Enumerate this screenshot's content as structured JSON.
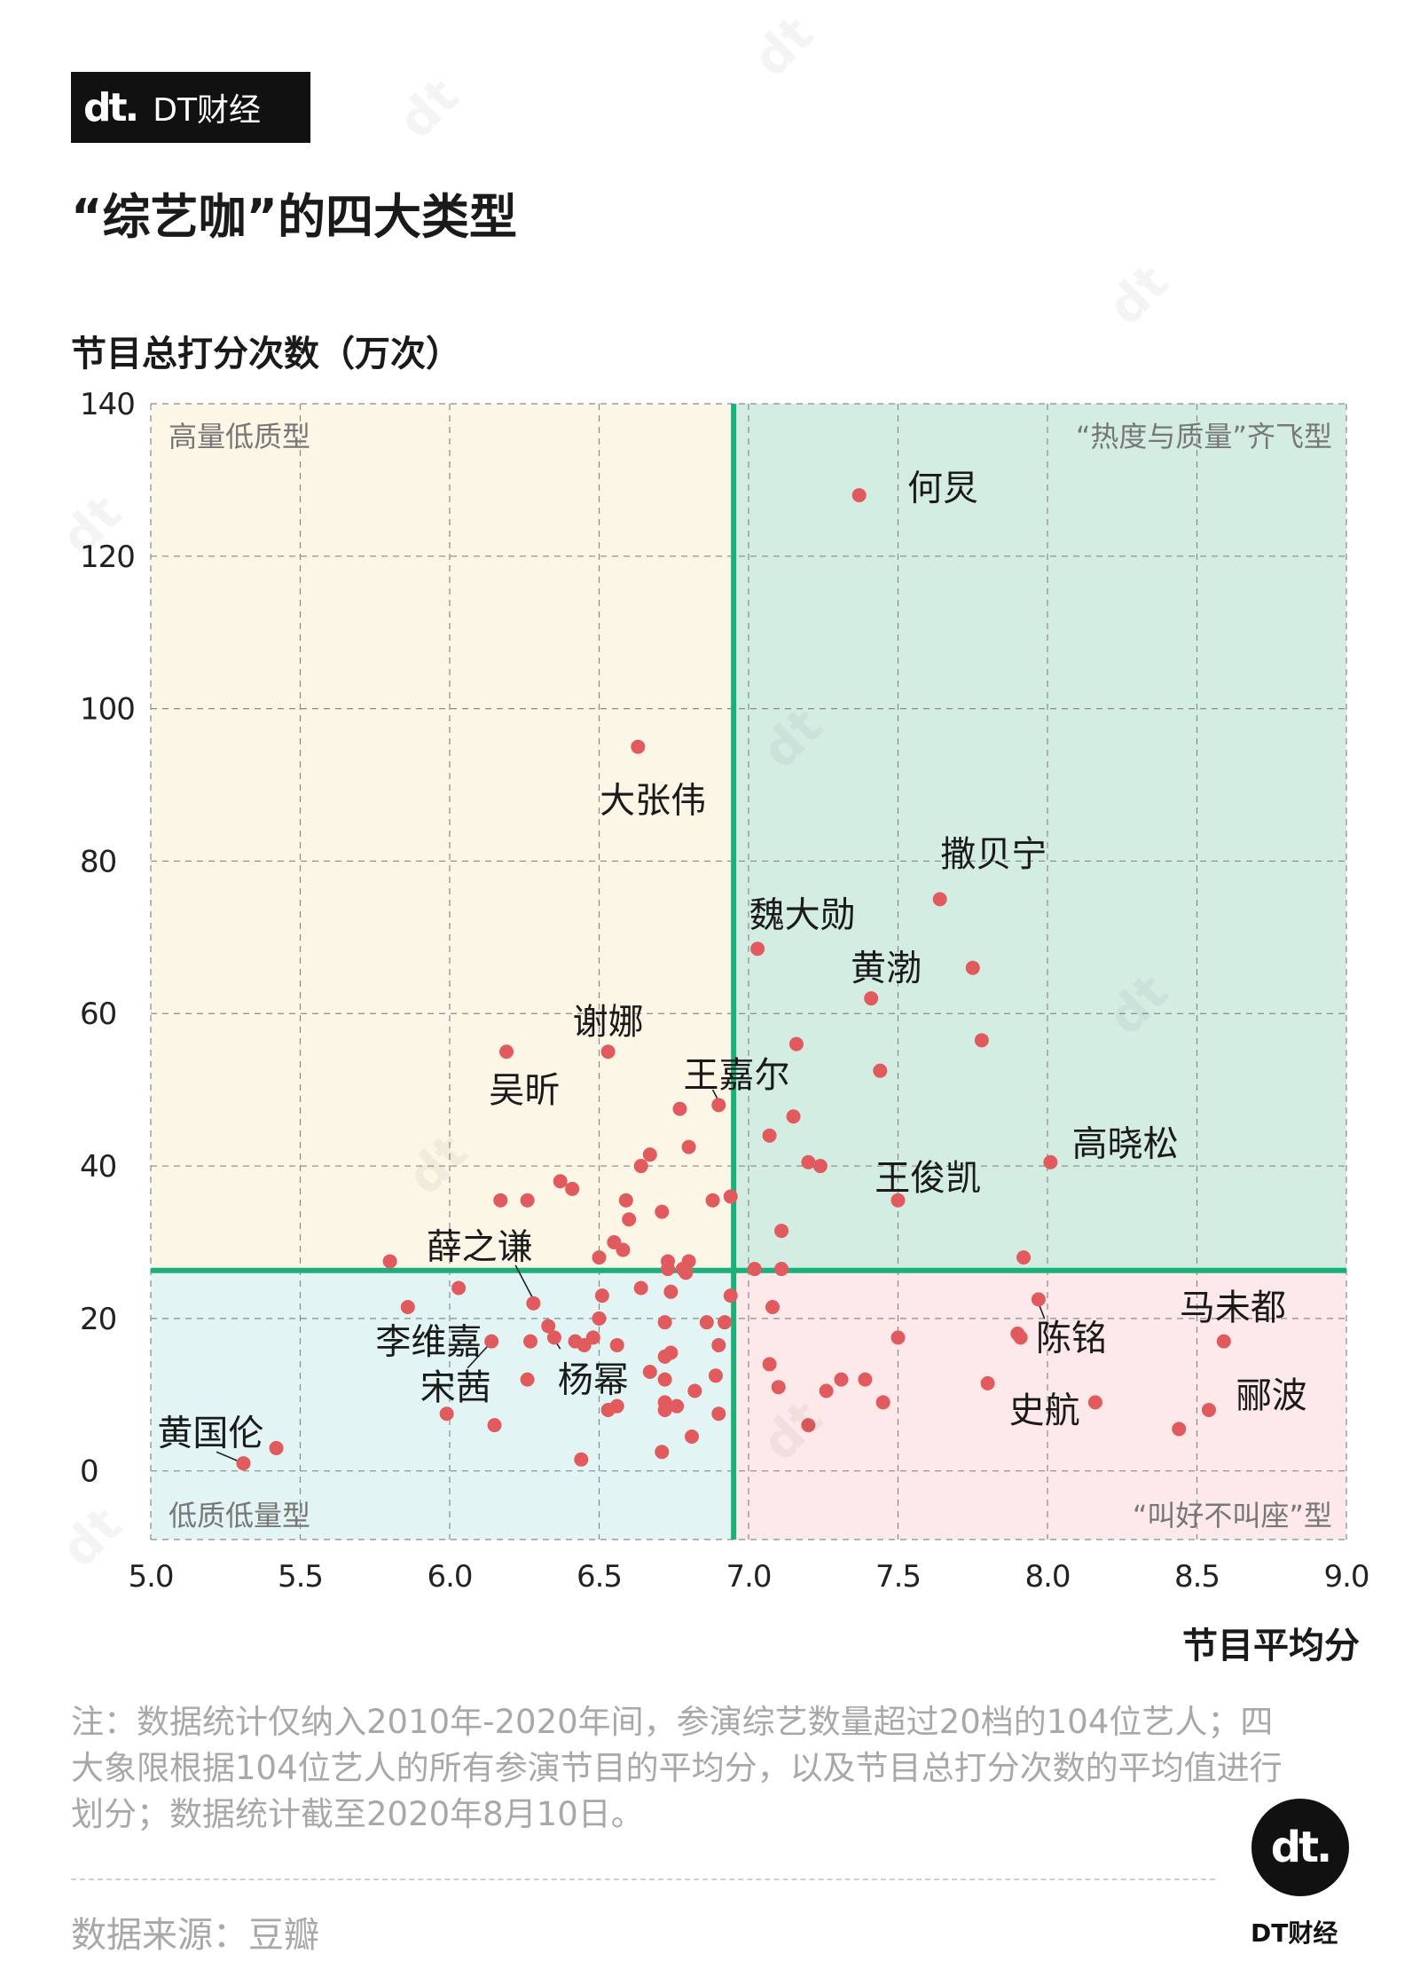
{
  "brand": {
    "logo": "dt.",
    "name": "DT财经"
  },
  "chart_data": {
    "type": "scatter",
    "title": "“综艺咖”的四大类型",
    "ylabel": "节目总打分次数（万次）",
    "xlabel": "节目平均分",
    "xlim": [
      5.0,
      9.0
    ],
    "ylim": [
      -9,
      140
    ],
    "xticks": [
      "5.0",
      "5.5",
      "6.0",
      "6.5",
      "7.0",
      "7.5",
      "8.0",
      "8.5",
      "9.0"
    ],
    "yticks": [
      "0",
      "20",
      "40",
      "60",
      "80",
      "100",
      "120",
      "140"
    ],
    "grid": true,
    "mean_x": 6.95,
    "mean_y": 26.3,
    "quadrant_labels": {
      "top_left": "高量低质型",
      "top_right": "“热度与质量”齐飞型",
      "bottom_left": "低质低量型",
      "bottom_right": "“叫好不叫座”型"
    },
    "colors": {
      "point": "#e05a5e",
      "divider": "#1bb07a",
      "top_left": "#fbf6e6",
      "top_right": "#d4ede3",
      "bottom_left": "#e2f4f3",
      "bottom_right": "#fde9ea"
    },
    "points": [
      {
        "x": 7.37,
        "y": 128
      },
      {
        "x": 6.63,
        "y": 95
      },
      {
        "x": 7.64,
        "y": 75
      },
      {
        "x": 7.03,
        "y": 68.5
      },
      {
        "x": 7.75,
        "y": 66
      },
      {
        "x": 7.41,
        "y": 62
      },
      {
        "x": 7.78,
        "y": 56.5
      },
      {
        "x": 6.53,
        "y": 55
      },
      {
        "x": 6.19,
        "y": 55
      },
      {
        "x": 7.16,
        "y": 56
      },
      {
        "x": 7.44,
        "y": 52.5
      },
      {
        "x": 6.9,
        "y": 48
      },
      {
        "x": 6.77,
        "y": 47.5
      },
      {
        "x": 7.15,
        "y": 46.5
      },
      {
        "x": 7.07,
        "y": 44
      },
      {
        "x": 6.8,
        "y": 42.5
      },
      {
        "x": 6.67,
        "y": 41.5
      },
      {
        "x": 7.2,
        "y": 40.5
      },
      {
        "x": 7.24,
        "y": 40
      },
      {
        "x": 8.01,
        "y": 40.5
      },
      {
        "x": 6.64,
        "y": 40
      },
      {
        "x": 6.37,
        "y": 38
      },
      {
        "x": 6.41,
        "y": 37
      },
      {
        "x": 6.94,
        "y": 36
      },
      {
        "x": 6.17,
        "y": 35.5
      },
      {
        "x": 6.26,
        "y": 35.5
      },
      {
        "x": 6.59,
        "y": 35.5
      },
      {
        "x": 6.88,
        "y": 35.5
      },
      {
        "x": 7.5,
        "y": 35.5
      },
      {
        "x": 6.71,
        "y": 34
      },
      {
        "x": 6.6,
        "y": 33
      },
      {
        "x": 7.11,
        "y": 31.5
      },
      {
        "x": 6.55,
        "y": 30
      },
      {
        "x": 6.58,
        "y": 29
      },
      {
        "x": 5.8,
        "y": 27.5
      },
      {
        "x": 6.5,
        "y": 28
      },
      {
        "x": 6.73,
        "y": 27.5
      },
      {
        "x": 6.8,
        "y": 27.5
      },
      {
        "x": 6.73,
        "y": 26.5
      },
      {
        "x": 6.78,
        "y": 26.5
      },
      {
        "x": 6.79,
        "y": 26
      },
      {
        "x": 7.02,
        "y": 26.5
      },
      {
        "x": 7.11,
        "y": 26.5
      },
      {
        "x": 7.92,
        "y": 28
      },
      {
        "x": 6.03,
        "y": 24
      },
      {
        "x": 6.64,
        "y": 24
      },
      {
        "x": 6.74,
        "y": 23.5
      },
      {
        "x": 6.94,
        "y": 23
      },
      {
        "x": 6.51,
        "y": 23
      },
      {
        "x": 6.28,
        "y": 22
      },
      {
        "x": 5.86,
        "y": 21.5
      },
      {
        "x": 7.08,
        "y": 21.5
      },
      {
        "x": 7.97,
        "y": 22.5
      },
      {
        "x": 6.5,
        "y": 20
      },
      {
        "x": 6.72,
        "y": 19.5
      },
      {
        "x": 6.86,
        "y": 19.5
      },
      {
        "x": 6.92,
        "y": 19.5
      },
      {
        "x": 6.33,
        "y": 19
      },
      {
        "x": 6.48,
        "y": 17.5
      },
      {
        "x": 6.35,
        "y": 17.5
      },
      {
        "x": 6.42,
        "y": 17
      },
      {
        "x": 6.45,
        "y": 16.5
      },
      {
        "x": 6.56,
        "y": 16.5
      },
      {
        "x": 6.14,
        "y": 17
      },
      {
        "x": 6.27,
        "y": 17
      },
      {
        "x": 7.5,
        "y": 17.5
      },
      {
        "x": 7.9,
        "y": 18
      },
      {
        "x": 7.91,
        "y": 17.5
      },
      {
        "x": 8.59,
        "y": 17
      },
      {
        "x": 6.9,
        "y": 16.5
      },
      {
        "x": 6.74,
        "y": 15.5
      },
      {
        "x": 6.72,
        "y": 15
      },
      {
        "x": 7.07,
        "y": 14
      },
      {
        "x": 6.67,
        "y": 13
      },
      {
        "x": 6.89,
        "y": 12.5
      },
      {
        "x": 6.72,
        "y": 12
      },
      {
        "x": 6.26,
        "y": 12
      },
      {
        "x": 7.31,
        "y": 12
      },
      {
        "x": 7.39,
        "y": 12
      },
      {
        "x": 7.1,
        "y": 11
      },
      {
        "x": 7.8,
        "y": 11.5
      },
      {
        "x": 6.82,
        "y": 10.5
      },
      {
        "x": 7.26,
        "y": 10.5
      },
      {
        "x": 6.72,
        "y": 9
      },
      {
        "x": 6.76,
        "y": 8.5
      },
      {
        "x": 6.56,
        "y": 8.5
      },
      {
        "x": 6.53,
        "y": 8
      },
      {
        "x": 6.72,
        "y": 8
      },
      {
        "x": 7.45,
        "y": 9
      },
      {
        "x": 8.16,
        "y": 9
      },
      {
        "x": 8.54,
        "y": 8
      },
      {
        "x": 6.9,
        "y": 7.5
      },
      {
        "x": 5.99,
        "y": 7.5
      },
      {
        "x": 6.15,
        "y": 6
      },
      {
        "x": 7.2,
        "y": 6
      },
      {
        "x": 8.44,
        "y": 5.5
      },
      {
        "x": 6.81,
        "y": 4.5
      },
      {
        "x": 5.42,
        "y": 3
      },
      {
        "x": 6.71,
        "y": 2.5
      },
      {
        "x": 6.44,
        "y": 1.5
      },
      {
        "x": 5.31,
        "y": 1
      }
    ],
    "annotations": [
      {
        "text": "何炅",
        "x": 7.37,
        "y": 128,
        "tx": 7.65,
        "ty": 129
      },
      {
        "text": "大张伟",
        "x": 6.63,
        "y": 95,
        "tx": 6.68,
        "ty": 88
      },
      {
        "text": "撒贝宁",
        "x": 7.64,
        "y": 75,
        "tx": 7.82,
        "ty": 81
      },
      {
        "text": "魏大勋",
        "x": 7.03,
        "y": 68.5,
        "tx": 7.18,
        "ty": 73
      },
      {
        "text": "黄渤",
        "x": 7.41,
        "y": 62,
        "tx": 7.46,
        "ty": 66
      },
      {
        "text": "谢娜",
        "x": 6.53,
        "y": 55,
        "tx": 6.53,
        "ty": 59
      },
      {
        "text": "王嘉尔",
        "x": 6.9,
        "y": 48,
        "tx": 6.96,
        "ty": 52,
        "leader": [
          6.88,
          50,
          6.9,
          48.5
        ]
      },
      {
        "text": "吴昕",
        "x": 6.19,
        "y": 55,
        "tx": 6.25,
        "ty": 50
      },
      {
        "text": "高晓松",
        "x": 8.01,
        "y": 40.5,
        "tx": 8.26,
        "ty": 43
      },
      {
        "text": "王俊凯",
        "x": 7.5,
        "y": 35.5,
        "tx": 7.6,
        "ty": 38.5
      },
      {
        "text": "薛之谦",
        "x": 6.28,
        "y": 22,
        "tx": 6.1,
        "ty": 29.5,
        "leader": [
          6.22,
          27,
          6.28,
          22.5
        ]
      },
      {
        "text": "李维嘉",
        "x": 6.14,
        "y": 17,
        "tx": 5.93,
        "ty": 17
      },
      {
        "text": "宋茜",
        "x": 6.14,
        "y": 17,
        "tx": 6.02,
        "ty": 11,
        "leader": [
          6.06,
          13.5,
          6.13,
          16.5
        ]
      },
      {
        "text": "杨幂",
        "x": 6.33,
        "y": 19,
        "tx": 6.48,
        "ty": 12,
        "leader": [
          6.37,
          16,
          6.33,
          18.5
        ]
      },
      {
        "text": "陈铭",
        "x": 7.97,
        "y": 22.5,
        "tx": 8.08,
        "ty": 17.5,
        "leader": [
          7.99,
          20,
          7.97,
          22
        ]
      },
      {
        "text": "马未都",
        "x": 8.59,
        "y": 17,
        "tx": 8.62,
        "ty": 21.5
      },
      {
        "text": "史航",
        "x": 8.16,
        "y": 9,
        "tx": 7.99,
        "ty": 8
      },
      {
        "text": "郦波",
        "x": 8.54,
        "y": 8,
        "tx": 8.75,
        "ty": 10
      },
      {
        "text": "黄国伦",
        "x": 5.31,
        "y": 1,
        "tx": 5.2,
        "ty": 5,
        "leader": [
          5.22,
          2.5,
          5.31,
          1
        ]
      }
    ]
  },
  "note": "注：数据统计仅纳入2010年-2020年间，参演综艺数量超过20档的104位艺人；四大象限根据104位艺人的所有参演节目的平均分，以及节目总打分次数的平均值进行划分；数据统计截至2020年8月10日。",
  "source": "数据来源：豆瓣",
  "footer_brand": "DT财经"
}
